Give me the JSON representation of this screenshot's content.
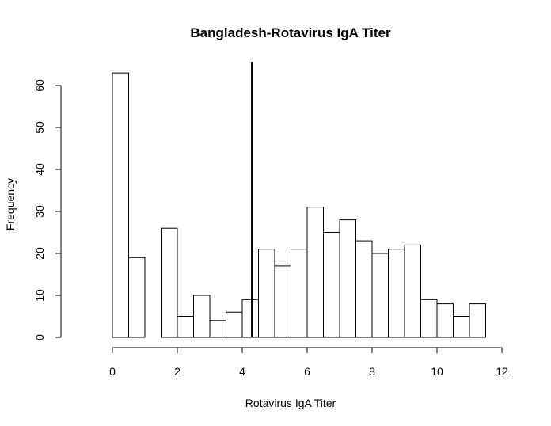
{
  "chart_data": {
    "type": "bar",
    "subtype": "histogram",
    "title": "Bangladesh-Rotavirus IgA Titer",
    "xlabel": "Rotavirus IgA Titer",
    "ylabel": "Frequency",
    "xlim": [
      0,
      12
    ],
    "ylim": [
      0,
      65
    ],
    "x_ticks": [
      0,
      2,
      4,
      6,
      8,
      10,
      12
    ],
    "y_ticks": [
      0,
      10,
      20,
      30,
      40,
      50,
      60
    ],
    "bin_width": 0.5,
    "bins": [
      {
        "start": 0.0,
        "end": 0.5,
        "value": 63
      },
      {
        "start": 0.5,
        "end": 1.0,
        "value": 19
      },
      {
        "start": 1.5,
        "end": 2.0,
        "value": 26
      },
      {
        "start": 2.0,
        "end": 2.5,
        "value": 5
      },
      {
        "start": 2.5,
        "end": 3.0,
        "value": 10
      },
      {
        "start": 3.0,
        "end": 3.5,
        "value": 4
      },
      {
        "start": 3.5,
        "end": 4.0,
        "value": 6
      },
      {
        "start": 4.0,
        "end": 4.5,
        "value": 9
      },
      {
        "start": 4.5,
        "end": 5.0,
        "value": 21
      },
      {
        "start": 5.0,
        "end": 5.5,
        "value": 17
      },
      {
        "start": 5.5,
        "end": 6.0,
        "value": 21
      },
      {
        "start": 6.0,
        "end": 6.5,
        "value": 31
      },
      {
        "start": 6.5,
        "end": 7.0,
        "value": 25
      },
      {
        "start": 7.0,
        "end": 7.5,
        "value": 28
      },
      {
        "start": 7.5,
        "end": 8.0,
        "value": 23
      },
      {
        "start": 8.0,
        "end": 8.5,
        "value": 20
      },
      {
        "start": 8.5,
        "end": 9.0,
        "value": 21
      },
      {
        "start": 9.0,
        "end": 9.5,
        "value": 22
      },
      {
        "start": 9.5,
        "end": 10.0,
        "value": 9
      },
      {
        "start": 10.0,
        "end": 10.5,
        "value": 8
      },
      {
        "start": 10.5,
        "end": 11.0,
        "value": 5
      },
      {
        "start": 11.0,
        "end": 11.5,
        "value": 8
      }
    ],
    "reference_line": {
      "x": 4.3
    },
    "bar_fill": "#ffffff",
    "bar_stroke": "#000000",
    "grid": false,
    "legend": "none"
  }
}
